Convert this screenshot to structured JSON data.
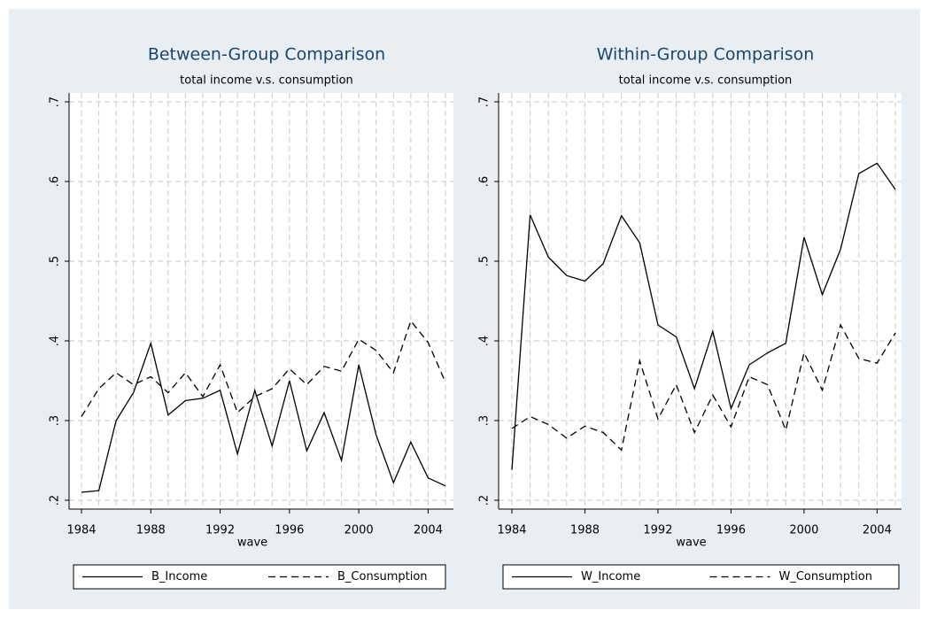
{
  "chart_data": [
    {
      "type": "line",
      "title": "Between-Group Comparison",
      "subtitle": "total income v.s. consumption",
      "x_label": "wave",
      "x": [
        1984,
        1985,
        1986,
        1987,
        1988,
        1989,
        1990,
        1991,
        1992,
        1993,
        1994,
        1995,
        1996,
        1997,
        1998,
        1999,
        2000,
        2001,
        2002,
        2003,
        2004,
        2005
      ],
      "series": [
        {
          "name": "B_Income",
          "color": "#000000",
          "line_style": "solid",
          "values": [
            0.21,
            0.212,
            0.3,
            0.335,
            0.397,
            0.307,
            0.325,
            0.328,
            0.338,
            0.258,
            0.338,
            0.268,
            0.35,
            0.262,
            0.31,
            0.25,
            0.37,
            0.282,
            0.222,
            0.273,
            0.228,
            0.218
          ]
        },
        {
          "name": "B_Consumption",
          "color": "#000000",
          "line_style": "dashed",
          "values": [
            0.305,
            0.34,
            0.36,
            0.345,
            0.355,
            0.335,
            0.36,
            0.33,
            0.37,
            0.31,
            0.33,
            0.34,
            0.365,
            0.345,
            0.368,
            0.362,
            0.402,
            0.388,
            0.36,
            0.425,
            0.398,
            0.348
          ]
        }
      ],
      "xlim": [
        1984,
        2005
      ],
      "xticks": [
        1984,
        1988,
        1992,
        1996,
        2000,
        2004
      ],
      "xminorticks": [
        1984,
        1985,
        1986,
        1987,
        1988,
        1989,
        1990,
        1991,
        1992,
        1993,
        1994,
        1995,
        1996,
        1997,
        1998,
        1999,
        2000,
        2001,
        2002,
        2003,
        2004,
        2005
      ],
      "ylim": [
        0.2,
        0.7
      ],
      "yticks": [
        {
          "value": 0.2,
          "label": ".2"
        },
        {
          "value": 0.3,
          "label": ".3"
        },
        {
          "value": 0.4,
          "label": ".4"
        },
        {
          "value": 0.5,
          "label": ".5"
        },
        {
          "value": 0.6,
          "label": ".6"
        },
        {
          "value": 0.7,
          "label": ".7"
        }
      ],
      "grid": true,
      "legend": "bottom"
    },
    {
      "type": "line",
      "title": "Within-Group Comparison",
      "subtitle": "total income v.s. consumption",
      "x_label": "wave",
      "x": [
        1984,
        1985,
        1986,
        1987,
        1988,
        1989,
        1990,
        1991,
        1992,
        1993,
        1994,
        1995,
        1996,
        1997,
        1998,
        1999,
        2000,
        2001,
        2002,
        2003,
        2004,
        2005
      ],
      "series": [
        {
          "name": "W_Income",
          "color": "#000000",
          "line_style": "solid",
          "values": [
            0.238,
            0.558,
            0.505,
            0.482,
            0.475,
            0.497,
            0.557,
            0.523,
            0.42,
            0.405,
            0.34,
            0.412,
            0.315,
            0.37,
            0.385,
            0.397,
            0.53,
            0.458,
            0.515,
            0.61,
            0.623,
            0.59
          ]
        },
        {
          "name": "W_Consumption",
          "color": "#000000",
          "line_style": "dashed",
          "values": [
            0.29,
            0.305,
            0.295,
            0.278,
            0.293,
            0.285,
            0.263,
            0.375,
            0.302,
            0.345,
            0.285,
            0.332,
            0.292,
            0.355,
            0.345,
            0.288,
            0.385,
            0.338,
            0.42,
            0.378,
            0.372,
            0.41
          ]
        }
      ],
      "xlim": [
        1984,
        2005
      ],
      "xticks": [
        1984,
        1988,
        1992,
        1996,
        2000,
        2004
      ],
      "xminorticks": [
        1984,
        1985,
        1986,
        1987,
        1988,
        1989,
        1990,
        1991,
        1992,
        1993,
        1994,
        1995,
        1996,
        1997,
        1998,
        1999,
        2000,
        2001,
        2002,
        2003,
        2004,
        2005
      ],
      "ylim": [
        0.2,
        0.7
      ],
      "yticks": [
        {
          "value": 0.2,
          "label": ".2"
        },
        {
          "value": 0.3,
          "label": ".3"
        },
        {
          "value": 0.4,
          "label": ".4"
        },
        {
          "value": 0.5,
          "label": ".5"
        },
        {
          "value": 0.6,
          "label": ".6"
        },
        {
          "value": 0.7,
          "label": ".7"
        }
      ],
      "grid": true,
      "legend": "bottom"
    }
  ]
}
